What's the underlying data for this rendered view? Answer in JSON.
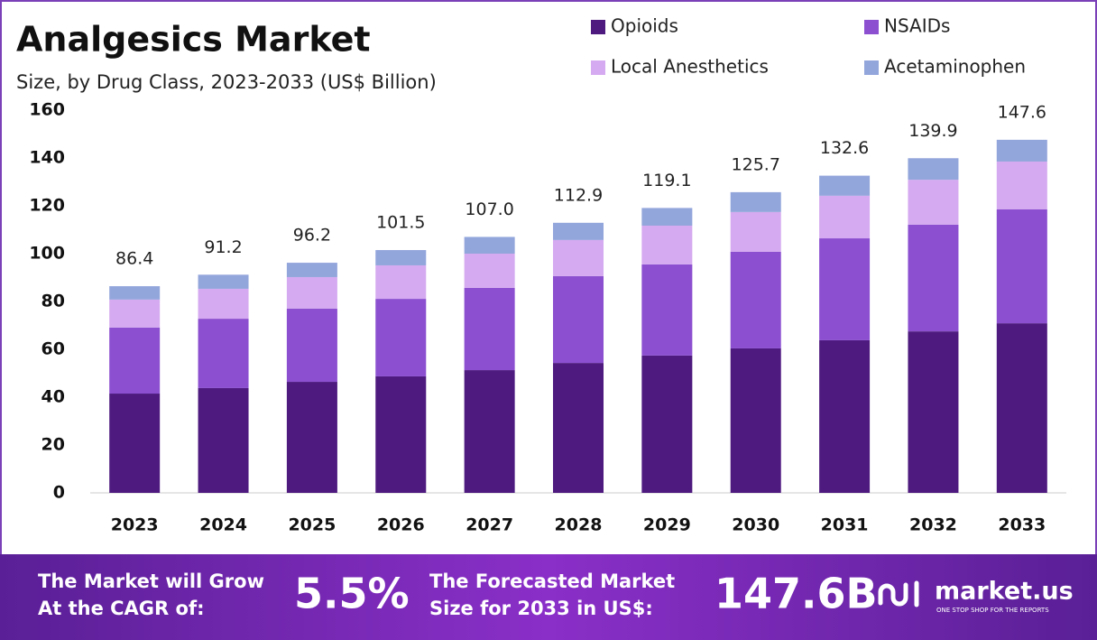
{
  "chart_data": {
    "type": "stacked-bar",
    "title": "Analgesics Market",
    "subtitle": "Size, by Drug Class, 2023-2033 (US$ Billion)",
    "categories": [
      "2023",
      "2024",
      "2025",
      "2026",
      "2027",
      "2028",
      "2029",
      "2030",
      "2031",
      "2032",
      "2033"
    ],
    "series": [
      {
        "name": "Opioids",
        "color": "#4e1a7f",
        "values": [
          41.5,
          43.8,
          46.4,
          48.7,
          51.3,
          54.3,
          57.4,
          60.4,
          63.8,
          67.5,
          70.9
        ]
      },
      {
        "name": "NSAIDs",
        "color": "#8b4fd0",
        "values": [
          27.6,
          29.0,
          30.6,
          32.4,
          34.4,
          36.3,
          38.1,
          40.4,
          42.6,
          44.6,
          47.6
        ]
      },
      {
        "name": "Local Anesthetics",
        "color": "#d5aaf0",
        "values": [
          11.7,
          12.5,
          13.2,
          14.0,
          14.3,
          15.1,
          16.2,
          16.6,
          17.8,
          18.8,
          20.0
        ]
      },
      {
        "name": "Acetaminophen",
        "color": "#93a6dc",
        "values": [
          5.6,
          5.9,
          6.0,
          6.4,
          7.0,
          7.2,
          7.4,
          8.3,
          8.4,
          9.0,
          9.1
        ]
      }
    ],
    "totals": [
      86.4,
      91.2,
      96.2,
      101.5,
      107.0,
      112.9,
      119.1,
      125.7,
      132.6,
      139.9,
      147.6
    ],
    "total_labels": [
      "86.4",
      "91.2",
      "96.2",
      "101.5",
      "107.0",
      "112.9",
      "119.1",
      "125.7",
      "132.6",
      "139.9",
      "147.6"
    ],
    "ylim": [
      0,
      160
    ],
    "yticks": [
      0,
      20,
      40,
      60,
      80,
      100,
      120,
      140,
      160
    ],
    "grid": false
  },
  "footer": {
    "cagr_text": [
      "The Market will Grow",
      "At the CAGR of:"
    ],
    "cagr_value": "5.5%",
    "forecast_text": [
      "The Forecasted Market",
      "Size for 2033 in US$:"
    ],
    "forecast_value": "147.6B",
    "brand": "market.us",
    "tagline": "ONE STOP SHOP FOR THE REPORTS"
  }
}
